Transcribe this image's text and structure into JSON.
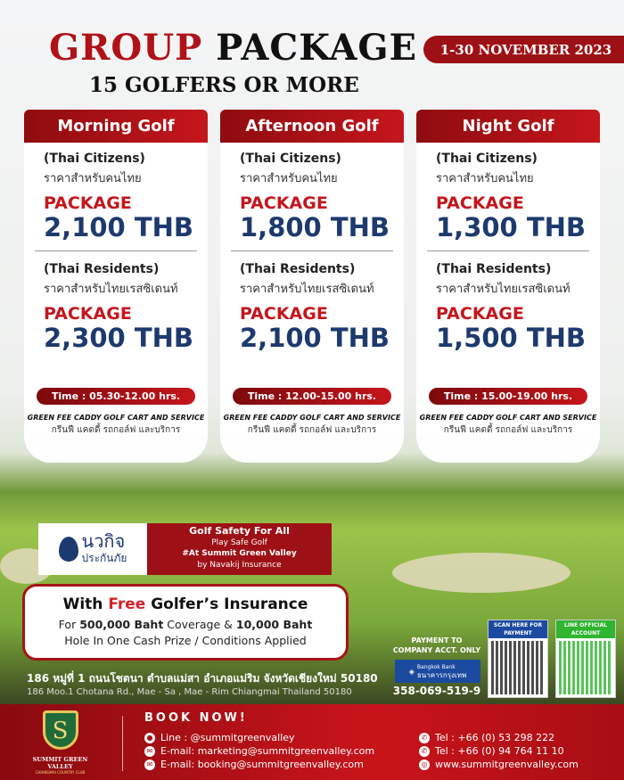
{
  "header": {
    "title_red": "GROUP",
    "title_black": "PACKAGE",
    "subtitle": "15 GOLFERS OR MORE",
    "date": "1-30 NOVEMBER 2023"
  },
  "cards": [
    {
      "title": "Morning Golf",
      "citizens": "(Thai Citizens)",
      "citizens_th": "ราคาสำหรับคนไทย",
      "pkg": "PACKAGE",
      "citizens_price": "2,100 THB",
      "residents": "(Thai Residents)",
      "residents_th": "ราคาสำหรับไทยเรสซิเดนท์",
      "residents_price": "2,300 THB",
      "time": "Time : 05.30-12.00 hrs.",
      "includes": "GREEN FEE CADDY GOLF CART AND SERVICE",
      "includes_th": "กรีนฟี แคดดี้ รถกอล์ฟ และบริการ"
    },
    {
      "title": "Afternoon Golf",
      "citizens": "(Thai Citizens)",
      "citizens_th": "ราคาสำหรับคนไทย",
      "pkg": "PACKAGE",
      "citizens_price": "1,800 THB",
      "residents": "(Thai Residents)",
      "residents_th": "ราคาสำหรับไทยเรสซิเดนท์",
      "residents_price": "2,100 THB",
      "time": "Time : 12.00-15.00 hrs.",
      "includes": "GREEN FEE CADDY GOLF CART AND SERVICE",
      "includes_th": "กรีนฟี แคดดี้ รถกอล์ฟ และบริการ"
    },
    {
      "title": "Night Golf",
      "citizens": "(Thai Citizens)",
      "citizens_th": "ราคาสำหรับคนไทย",
      "pkg": "PACKAGE",
      "citizens_price": "1,300 THB",
      "residents": "(Thai Residents)",
      "residents_th": "ราคาสำหรับไทยเรสซิเดนท์",
      "residents_price": "1,500 THB",
      "time": "Time : 15.00-19.00 hrs.",
      "includes": "GREEN FEE CADDY GOLF CART AND SERVICE",
      "includes_th": "กรีนฟี แคดดี้ รถกอล์ฟ และบริการ"
    }
  ],
  "insurer": {
    "logo_th": "นวกิจ",
    "logo_th2": "ประกันภัย",
    "line1": "Golf Safety For All",
    "line2": "Play Safe Golf",
    "line3": "#At Summit Green Valley",
    "line4": "by Navakij Insurance"
  },
  "insurance": {
    "with": "With ",
    "free": "Free",
    "golfer": " Golfer’s Insurance",
    "l2a": "For ",
    "l2b": "500,000 Baht",
    "l2c": " Coverage & ",
    "l2d": "10,000 Baht",
    "l3": "Hole In One Cash Prize / Conditions Applied"
  },
  "address": {
    "th": "186 หมู่ที่ 1 ถนนโชตนา ตำบลแม่สา อำเภอแม่ริม จังหวัดเชียงใหม่ 50180",
    "en": "186 Moo.1 Chotana Rd., Mae - Sa , Mae - Rim Chiangmai Thailand 50180"
  },
  "payment": {
    "note": "PAYMENT TO COMPANY ACCT. ONLY",
    "bank_en": "Bangkok Bank",
    "bank_th": "ธนาคารกรุงเทพ",
    "account": "358-069-519-9",
    "qr1": "SCAN HERE FOR PAYMENT",
    "qr2": "LINE OFFICIAL ACCOUNT"
  },
  "footer": {
    "logo_name": "SUMMIT GREEN VALLEY",
    "logo_sub": "CHIANGMAI COUNTRY CLUB",
    "book": "BOOK NOW!",
    "line": "Line : @summitgreenvalley",
    "email1": "E-mail: marketing@summitgreenvalley.com",
    "email2": "E-mail: booking@summitgreenvalley.com",
    "tel1": "Tel : +66 (0) 53 298 222",
    "tel2": "Tel : +66 (0) 94 764 11 10",
    "web": "www.summitgreenvalley.com"
  },
  "colors": {
    "brand_red": "#b01218",
    "price_navy": "#1d3a6e",
    "bank_blue": "#1b4aa0",
    "line_green": "#2fb52f"
  }
}
